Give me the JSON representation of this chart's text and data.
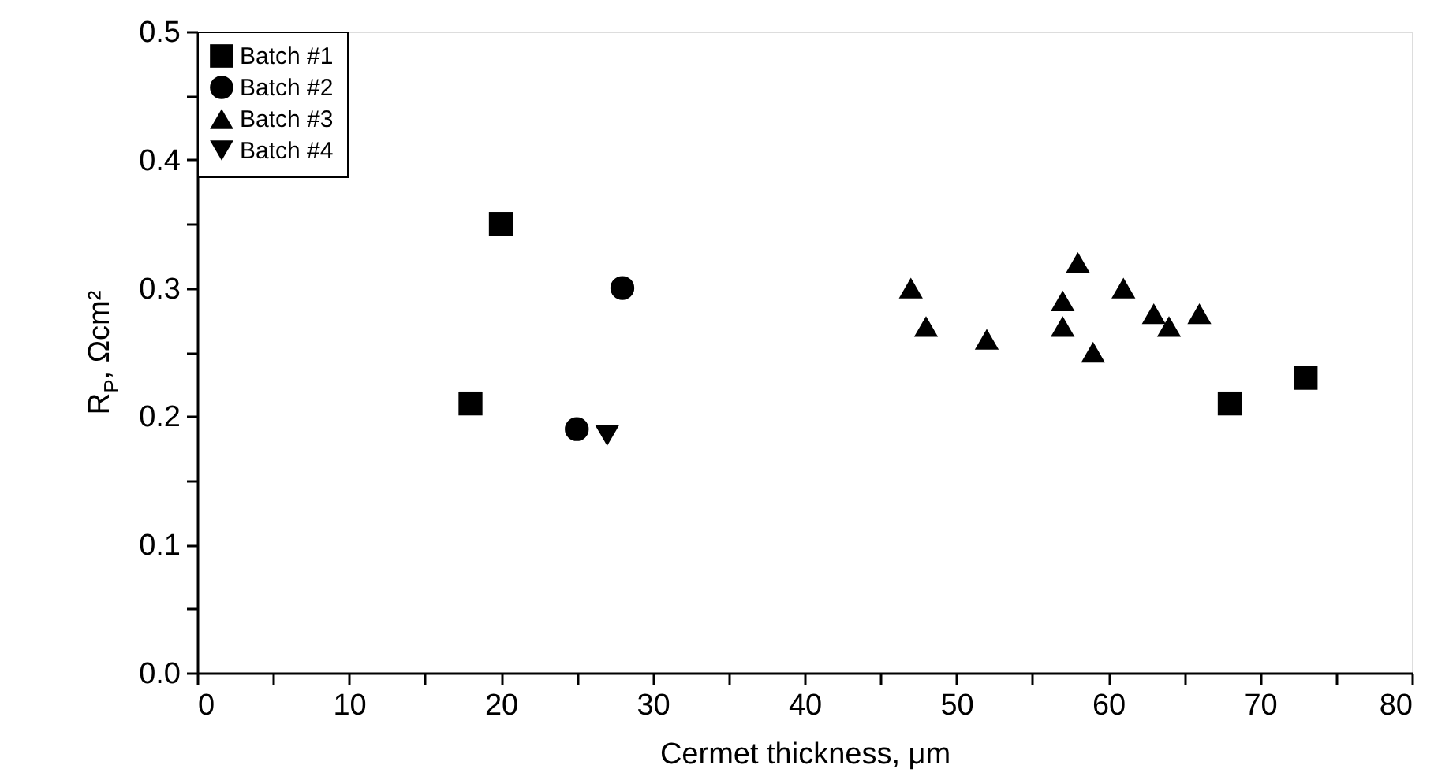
{
  "chart_data": {
    "type": "scatter",
    "xlabel": "Cermet thickness, μm",
    "ylabel": "R$_{P}$, Ωcm²",
    "xlim": [
      0,
      80
    ],
    "ylim": [
      0,
      0.5
    ],
    "xticks": [
      0,
      {
        "value": 5,
        "label": null
      },
      10,
      {
        "value": 15,
        "label": null
      },
      20,
      {
        "value": 25,
        "label": null
      },
      30,
      {
        "value": 35,
        "label": null
      },
      40,
      {
        "value": 45,
        "label": null
      },
      50,
      {
        "value": 55,
        "label": null
      },
      60,
      {
        "value": 65,
        "label": null
      },
      70,
      {
        "value": 75,
        "label": null
      },
      80
    ],
    "yticks": [
      {
        "value": 0,
        "label": "0.0"
      },
      {
        "value": 0.05,
        "label": null
      },
      {
        "value": 0.1,
        "label": "0.1"
      },
      {
        "value": 0.15,
        "label": null
      },
      {
        "value": 0.2,
        "label": "0.2"
      },
      {
        "value": 0.25,
        "label": null
      },
      {
        "value": 0.3,
        "label": "0.3"
      },
      {
        "value": 0.35,
        "label": null
      },
      {
        "value": 0.4,
        "label": "0.4"
      },
      {
        "value": 0.45,
        "label": null
      },
      {
        "value": 0.5,
        "label": "0.5"
      }
    ],
    "grid": false,
    "legend": "top left",
    "series": [
      {
        "name": "Batch #1",
        "color": "#000000",
        "marker": "square",
        "x": [
          18,
          20,
          68,
          73
        ],
        "values": [
          0.21,
          0.35,
          0.21,
          0.23
        ]
      },
      {
        "name": "Batch #2",
        "color": "#000000",
        "marker": "circle",
        "x": [
          25,
          28
        ],
        "values": [
          0.19,
          0.3
        ]
      },
      {
        "name": "Batch #3",
        "color": "#000000",
        "marker": "triangle",
        "x": [
          47,
          48,
          52,
          57,
          57,
          58,
          59,
          61,
          63,
          64,
          66
        ],
        "values": [
          0.3,
          0.27,
          0.26,
          0.29,
          0.27,
          0.32,
          0.25,
          0.3,
          0.28,
          0.27,
          0.28
        ]
      },
      {
        "name": "Batch #4",
        "color": "#000000",
        "marker": "triangle-down",
        "x": [
          27
        ],
        "values": [
          0.185
        ]
      }
    ]
  }
}
